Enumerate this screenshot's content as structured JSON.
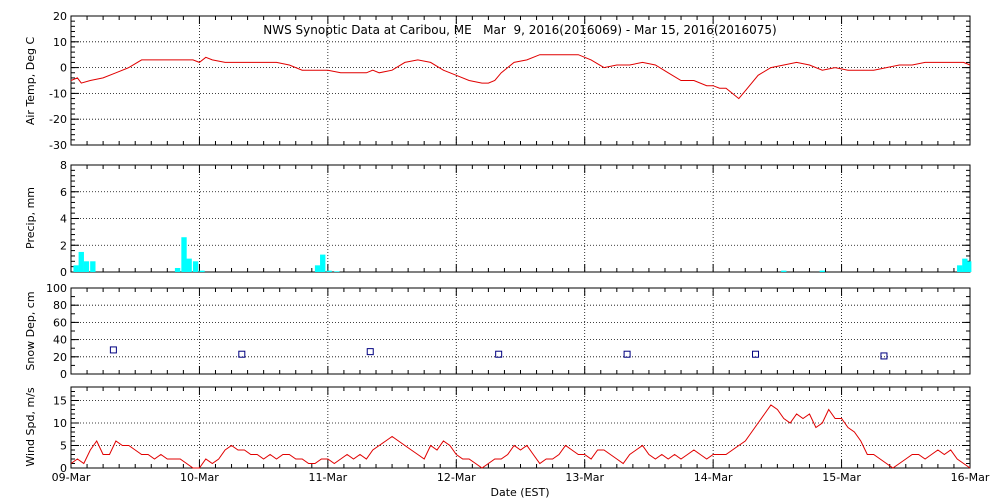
{
  "colors": {
    "air_temp": "#e00000",
    "precip": "#00ffff",
    "snow_depth": "#000080",
    "wind_speed": "#e00000"
  },
  "chart_data": {
    "type": "line",
    "title": "NWS Synoptic Data at Caribou, ME   Mar  9, 2016(2016069) - Mar 15, 2016(2016075)",
    "xlabel": "Date (EST)",
    "x_tick_labels": [
      "09-Mar",
      "10-Mar",
      "11-Mar",
      "12-Mar",
      "13-Mar",
      "14-Mar",
      "15-Mar",
      "16-Mar"
    ],
    "x_range_days": [
      0,
      7
    ],
    "grid": true,
    "panels": [
      {
        "name": "air_temp",
        "type": "line",
        "ylabel": "Air Temp, Deg C",
        "ylim": [
          -30,
          20
        ],
        "yticks": [
          -30,
          -20,
          -10,
          0,
          10,
          20
        ],
        "series": [
          {
            "x": [
              0,
              0.05,
              0.08,
              0.15,
              0.25,
              0.35,
              0.45,
              0.55,
              0.65,
              0.75,
              0.85,
              0.95,
              1.0,
              1.05,
              1.1,
              1.2,
              1.35,
              1.5,
              1.6,
              1.7,
              1.8,
              1.9,
              2.0,
              2.1,
              2.2,
              2.3,
              2.35,
              2.4,
              2.5,
              2.6,
              2.7,
              2.8,
              2.9,
              3.0,
              3.1,
              3.2,
              3.25,
              3.3,
              3.35,
              3.45,
              3.55,
              3.65,
              3.75,
              3.85,
              3.95,
              4.05,
              4.15,
              4.25,
              4.35,
              4.45,
              4.55,
              4.65,
              4.75,
              4.85,
              4.95,
              5.0,
              5.05,
              5.1,
              5.15,
              5.2,
              5.25,
              5.3,
              5.35,
              5.45,
              5.55,
              5.65,
              5.75,
              5.85,
              5.95,
              6.05,
              6.15,
              6.25,
              6.35,
              6.45,
              6.55,
              6.65,
              6.75,
              6.85,
              6.95,
              7.0
            ],
            "y": [
              -5,
              -4,
              -6,
              -5,
              -4,
              -2,
              0,
              3,
              3,
              3,
              3,
              3,
              2,
              4,
              3,
              2,
              2,
              2,
              2,
              1,
              -1,
              -1,
              -1,
              -2,
              -2,
              -2,
              -1,
              -2,
              -1,
              2,
              3,
              2,
              -1,
              -3,
              -5,
              -6,
              -6,
              -5,
              -2,
              2,
              3,
              5,
              5,
              5,
              5,
              3,
              0,
              1,
              1,
              2,
              1,
              -2,
              -5,
              -5,
              -7,
              -7,
              -8,
              -8,
              -10,
              -12,
              -9,
              -6,
              -3,
              0,
              1,
              2,
              1,
              -1,
              0,
              -1,
              -1,
              -1,
              0,
              1,
              1,
              2,
              2,
              2,
              2,
              1
            ]
          }
        ]
      },
      {
        "name": "precip",
        "type": "bar",
        "ylabel": "Precip, mm",
        "ylim": [
          0,
          8
        ],
        "yticks": [
          0,
          2,
          4,
          6,
          8
        ],
        "series": [
          {
            "x": [
              0.04,
              0.08,
              0.12,
              0.17,
              0.83,
              0.88,
              0.92,
              0.97,
              1.02,
              1.92,
              1.96,
              2.01,
              2.07,
              5.55,
              5.85,
              6.92,
              6.96,
              6.99
            ],
            "y": [
              0.5,
              1.5,
              0.8,
              0.8,
              0.3,
              2.6,
              1.0,
              0.8,
              0.1,
              0.5,
              1.3,
              0.1,
              0.05,
              0.1,
              0.1,
              0.5,
              1.0,
              0.8
            ]
          }
        ]
      },
      {
        "name": "snow_depth",
        "type": "scatter",
        "ylabel": "Snow Dep, cm",
        "ylim": [
          0,
          100
        ],
        "yticks": [
          0,
          20,
          40,
          60,
          80,
          100
        ],
        "series": [
          {
            "x": [
              0.33,
              1.33,
              2.33,
              3.33,
              4.33,
              5.33,
              6.33
            ],
            "y": [
              28,
              23,
              26,
              23,
              23,
              23,
              21
            ]
          }
        ]
      },
      {
        "name": "wind_speed",
        "type": "line",
        "ylabel": "Wind Spd, m/s",
        "ylim": [
          0,
          18
        ],
        "yticks": [
          0,
          5,
          10,
          15
        ],
        "series": [
          {
            "x": [
              0,
              0.05,
              0.1,
              0.15,
              0.2,
              0.25,
              0.3,
              0.35,
              0.4,
              0.45,
              0.5,
              0.55,
              0.6,
              0.65,
              0.7,
              0.75,
              0.8,
              0.85,
              0.9,
              0.95,
              1.0,
              1.05,
              1.1,
              1.15,
              1.2,
              1.25,
              1.3,
              1.35,
              1.4,
              1.45,
              1.5,
              1.55,
              1.6,
              1.65,
              1.7,
              1.75,
              1.8,
              1.85,
              1.9,
              1.95,
              2.0,
              2.05,
              2.1,
              2.15,
              2.2,
              2.25,
              2.3,
              2.35,
              2.4,
              2.45,
              2.5,
              2.55,
              2.6,
              2.65,
              2.7,
              2.75,
              2.8,
              2.85,
              2.9,
              2.95,
              3.0,
              3.05,
              3.1,
              3.15,
              3.2,
              3.25,
              3.3,
              3.35,
              3.4,
              3.45,
              3.5,
              3.55,
              3.6,
              3.65,
              3.7,
              3.75,
              3.8,
              3.85,
              3.9,
              3.95,
              4.0,
              4.05,
              4.1,
              4.15,
              4.2,
              4.25,
              4.3,
              4.35,
              4.4,
              4.45,
              4.5,
              4.55,
              4.6,
              4.65,
              4.7,
              4.75,
              4.8,
              4.85,
              4.9,
              4.95,
              5.0,
              5.05,
              5.1,
              5.15,
              5.2,
              5.25,
              5.3,
              5.35,
              5.4,
              5.45,
              5.5,
              5.55,
              5.6,
              5.65,
              5.7,
              5.75,
              5.8,
              5.85,
              5.9,
              5.95,
              6.0,
              6.05,
              6.1,
              6.15,
              6.2,
              6.25,
              6.3,
              6.35,
              6.4,
              6.45,
              6.5,
              6.55,
              6.6,
              6.65,
              6.7,
              6.75,
              6.8,
              6.85,
              6.9,
              6.95,
              7.0
            ],
            "y": [
              1,
              2,
              1,
              4,
              6,
              3,
              3,
              6,
              5,
              5,
              4,
              3,
              3,
              2,
              3,
              2,
              2,
              2,
              1,
              0,
              0,
              2,
              1,
              2,
              4,
              5,
              4,
              4,
              3,
              3,
              2,
              3,
              2,
              3,
              3,
              2,
              2,
              1,
              1,
              2,
              2,
              1,
              2,
              3,
              2,
              3,
              2,
              4,
              5,
              6,
              7,
              6,
              5,
              4,
              3,
              2,
              5,
              4,
              6,
              5,
              3,
              2,
              2,
              1,
              0,
              1,
              2,
              2,
              3,
              5,
              4,
              5,
              3,
              1,
              2,
              2,
              3,
              5,
              4,
              3,
              3,
              2,
              4,
              4,
              3,
              2,
              1,
              3,
              4,
              5,
              3,
              2,
              3,
              2,
              3,
              2,
              3,
              4,
              3,
              2,
              3,
              3,
              3,
              4,
              5,
              6,
              8,
              10,
              12,
              14,
              13,
              11,
              10,
              12,
              11,
              12,
              9,
              10,
              13,
              11,
              11,
              9,
              8,
              6,
              3,
              3,
              2,
              1,
              0,
              1,
              2,
              3,
              3,
              2,
              3,
              4,
              3,
              4,
              2,
              1,
              0
            ]
          }
        ]
      }
    ]
  }
}
